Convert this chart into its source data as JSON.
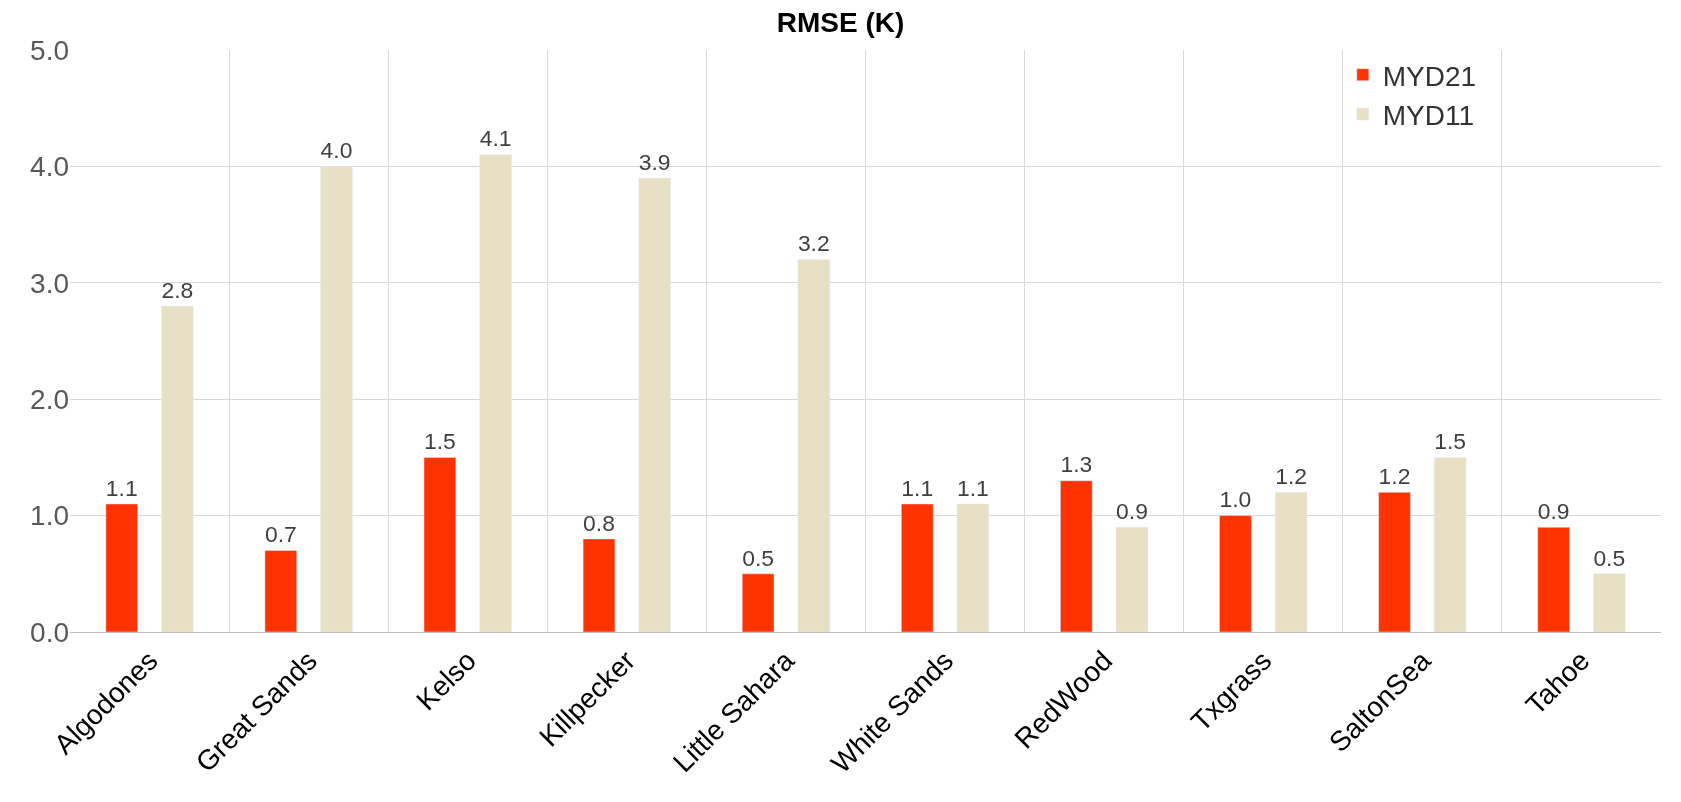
{
  "chart_data": {
    "type": "bar",
    "title": "RMSE (K)",
    "categories": [
      "Algodones",
      "Great Sands",
      "Kelso",
      "Killpecker",
      "Little Sahara",
      "White Sands",
      "RedWood",
      "Txgrass",
      "SaltonSea",
      "Tahoe"
    ],
    "series": [
      {
        "name": "MYD21",
        "color": "#ff3300",
        "values": [
          1.1,
          0.7,
          1.5,
          0.8,
          0.5,
          1.1,
          1.3,
          1.0,
          1.2,
          0.9
        ],
        "value_labels": [
          "1.1",
          "0.7",
          "1.5",
          "0.8",
          "0.5",
          "1.1",
          "1.3",
          "1.0",
          "1.2",
          "0.9"
        ]
      },
      {
        "name": "MYD11",
        "color": "#e8e0c4",
        "values": [
          2.8,
          4.0,
          4.1,
          3.9,
          3.2,
          1.1,
          0.9,
          1.2,
          1.5,
          0.5
        ],
        "value_labels": [
          "2.8",
          "4.0",
          "4.1",
          "3.9",
          "3.2",
          "1.1",
          "0.9",
          "1.2",
          "1.5",
          "0.5"
        ]
      }
    ],
    "ylim": [
      0,
      5
    ],
    "yticks": [
      {
        "value": 0,
        "label": "0.0"
      },
      {
        "value": 1,
        "label": "1.0"
      },
      {
        "value": 2,
        "label": "2.0"
      },
      {
        "value": 3,
        "label": "3.0"
      },
      {
        "value": 4,
        "label": "4.0"
      },
      {
        "value": 5,
        "label": "5.0"
      }
    ],
    "grid": true,
    "legend": "top right"
  }
}
